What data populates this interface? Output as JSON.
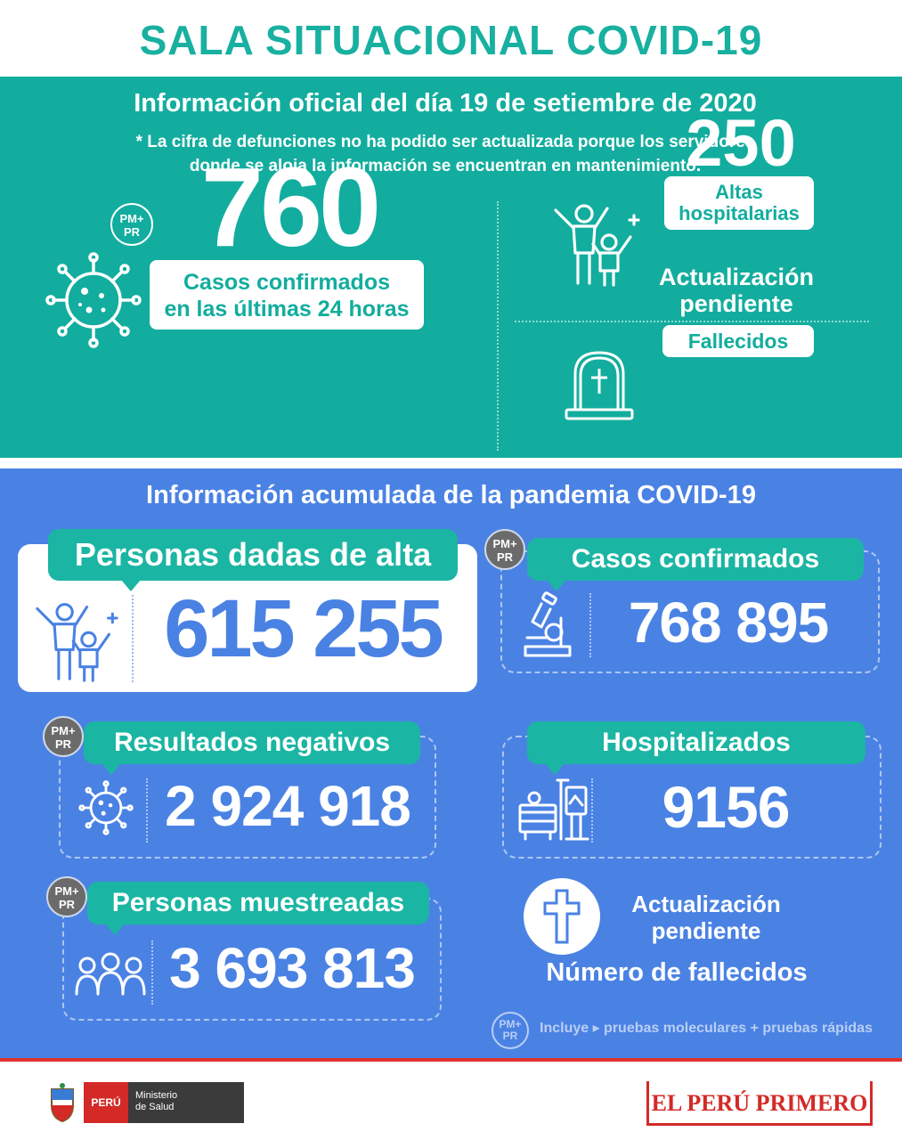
{
  "header": {
    "title": "SALA SITUACIONAL COVID-19"
  },
  "daily": {
    "subtitle": "Información oficial del día 19 de setiembre de 2020",
    "note_line1": "* La cifra de defunciones no ha podido ser actualizada porque los servidores",
    "note_line2": "donde se aloja la información se encuentran en mantenimiento.",
    "badge_line1": "PM+",
    "badge_line2": "PR",
    "cases_value": "760",
    "cases_label_line1": "Casos confirmados",
    "cases_label_line2": "en las últimas 24 horas",
    "discharges_value": "250",
    "discharges_label_line1": "Altas",
    "discharges_label_line2": "hospitalarias",
    "deaths_status_line1": "Actualización",
    "deaths_status_line2": "pendiente",
    "deaths_label": "Fallecidos"
  },
  "cumulative": {
    "subtitle": "Información acumulada de la pandemia COVID-19",
    "discharged": {
      "label": "Personas dadas de alta",
      "value": "615 255"
    },
    "confirmed": {
      "label": "Casos confirmados",
      "value": "768 895",
      "badge_line1": "PM+",
      "badge_line2": "PR"
    },
    "negative": {
      "label": "Resultados negativos",
      "value": "2 924 918",
      "badge_line1": "PM+",
      "badge_line2": "PR"
    },
    "hospitalized": {
      "label": "Hospitalizados",
      "value": "9156"
    },
    "sampled": {
      "label": "Personas muestreadas",
      "value": "3 693 813",
      "badge_line1": "PM+",
      "badge_line2": "PR"
    },
    "deaths": {
      "status_line1": "Actualización",
      "status_line2": "pendiente",
      "label": "Número de fallecidos"
    },
    "footnote": {
      "badge_line1": "PM+",
      "badge_line2": "PR",
      "text": "Incluye ▸ pruebas moleculares +  pruebas rápidas"
    }
  },
  "footer": {
    "country": "PERÚ",
    "ministry_line1": "Ministerio",
    "ministry_line2": "de Salud",
    "brand": "EL PERÚ PRIMERO"
  },
  "colors": {
    "teal": "#12ad9e",
    "blue": "#4a82e4",
    "pill": "#1bb5a3",
    "red": "#d32a27"
  },
  "icons": [
    "virus-icon",
    "celebration-icon",
    "tombstone-icon",
    "microscope-icon",
    "hospital-bed-icon",
    "family-icon",
    "cross-icon",
    "coat-of-arms-icon"
  ]
}
